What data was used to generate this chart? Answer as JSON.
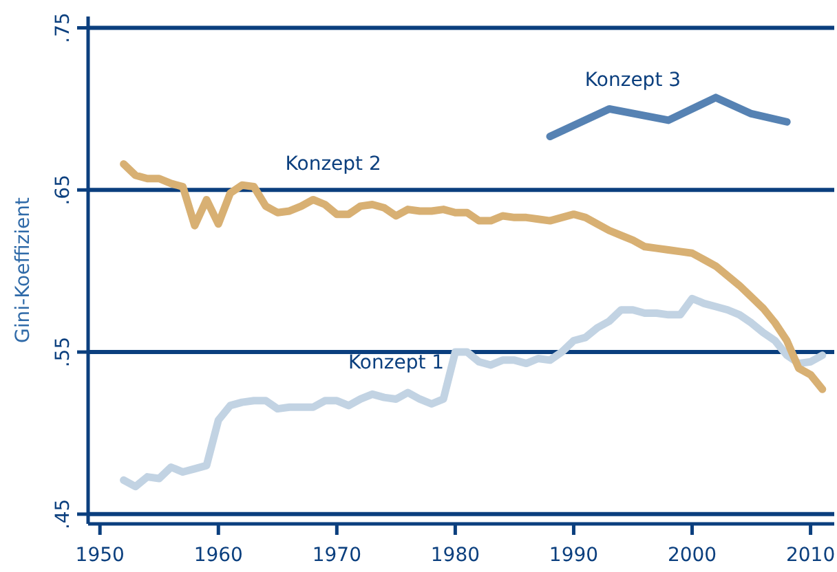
{
  "chart_data": {
    "type": "line",
    "x": [
      1952,
      1953,
      1954,
      1955,
      1956,
      1957,
      1958,
      1959,
      1960,
      1961,
      1962,
      1963,
      1964,
      1965,
      1966,
      1967,
      1968,
      1969,
      1970,
      1971,
      1972,
      1973,
      1974,
      1975,
      1976,
      1977,
      1978,
      1979,
      1980,
      1981,
      1982,
      1983,
      1984,
      1985,
      1986,
      1987,
      1988,
      1989,
      1990,
      1991,
      1992,
      1993,
      1994,
      1995,
      1996,
      1997,
      1998,
      1999,
      2000,
      2001,
      2002,
      2003,
      2004,
      2005,
      2006,
      2007,
      2008,
      2009,
      2010,
      2011
    ],
    "series": [
      {
        "name": "Konzept 1",
        "color": "#c2d3e3",
        "values": [
          0.471,
          0.467,
          0.473,
          0.472,
          0.479,
          0.476,
          0.478,
          0.48,
          0.508,
          0.517,
          0.519,
          0.52,
          0.52,
          0.515,
          0.516,
          0.516,
          0.516,
          0.52,
          0.52,
          0.517,
          0.521,
          0.524,
          0.522,
          0.521,
          0.525,
          0.521,
          0.518,
          0.521,
          0.55,
          0.55,
          0.544,
          0.542,
          0.545,
          0.545,
          0.543,
          0.546,
          0.545,
          0.55,
          0.557,
          0.559,
          0.565,
          0.569,
          0.576,
          0.576,
          0.574,
          0.574,
          0.573,
          0.573,
          0.583,
          0.58,
          0.578,
          0.576,
          0.573,
          0.568,
          0.562,
          0.557,
          0.548,
          0.543,
          0.544,
          0.548
        ]
      },
      {
        "name": "Konzept 2",
        "color": "#d8b073",
        "values": [
          0.666,
          0.659,
          0.657,
          0.657,
          0.654,
          0.652,
          0.628,
          0.644,
          0.629,
          0.648,
          0.653,
          0.652,
          0.64,
          0.636,
          0.637,
          0.64,
          0.644,
          0.641,
          0.635,
          0.635,
          0.64,
          0.641,
          0.639,
          0.634,
          0.638,
          0.637,
          0.637,
          0.638,
          0.636,
          0.636,
          0.631,
          0.631,
          0.634,
          0.633,
          0.633,
          0.632,
          0.631,
          0.633,
          0.635,
          0.633,
          0.629,
          0.625,
          0.622,
          0.619,
          0.615,
          0.614,
          0.613,
          0.612,
          0.611,
          0.607,
          0.603,
          0.597,
          0.591,
          0.584,
          0.577,
          0.568,
          0.557,
          0.54,
          0.536,
          0.527
        ]
      },
      {
        "name": "Konzept 3",
        "color": "#5682b3",
        "x": [
          1988,
          1993,
          1998,
          2002,
          2005,
          2008
        ],
        "values": [
          0.683,
          0.7,
          0.693,
          0.707,
          0.697,
          0.692
        ]
      }
    ],
    "ylabel": "Gini-Koeffizient",
    "xlim": [
      1949,
      2012
    ],
    "xticks": [
      1950,
      1960,
      1970,
      1980,
      1990,
      2000,
      2010
    ],
    "ylim": [
      0.444,
      0.757
    ],
    "yticks": [
      {
        "value": 0.45,
        "label": ".45"
      },
      {
        "value": 0.55,
        "label": ".55"
      },
      {
        "value": 0.65,
        "label": ".65"
      },
      {
        "value": 0.75,
        "label": ".75"
      }
    ],
    "grid": "y",
    "legend": false,
    "marker": "none",
    "line_style": "solid"
  }
}
